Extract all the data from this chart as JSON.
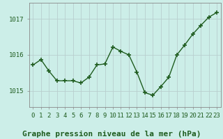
{
  "x": [
    0,
    1,
    2,
    3,
    4,
    5,
    6,
    7,
    8,
    9,
    10,
    11,
    12,
    13,
    14,
    15,
    16,
    17,
    18,
    19,
    20,
    21,
    22,
    23
  ],
  "y": [
    1015.72,
    1015.87,
    1015.55,
    1015.28,
    1015.28,
    1015.28,
    1015.22,
    1015.38,
    1015.72,
    1015.75,
    1016.22,
    1016.1,
    1016.0,
    1015.52,
    1014.95,
    1014.88,
    1015.12,
    1015.38,
    1016.0,
    1016.28,
    1016.58,
    1016.82,
    1017.05,
    1017.18
  ],
  "line_color": "#1f5c1f",
  "marker": "+",
  "marker_size": 5,
  "marker_lw": 1.2,
  "bg_color": "#cceee8",
  "grid_color": "#b8cece",
  "title": "Graphe pression niveau de la mer (hPa)",
  "title_fontsize": 8,
  "title_color": "#1f5c1f",
  "title_bold": true,
  "yticks": [
    1015,
    1016,
    1017
  ],
  "ylim": [
    1014.55,
    1017.45
  ],
  "xlim": [
    -0.5,
    23.5
  ],
  "xtick_labels": [
    "0",
    "1",
    "2",
    "3",
    "4",
    "5",
    "6",
    "7",
    "8",
    "9",
    "10",
    "11",
    "12",
    "13",
    "14",
    "15",
    "16",
    "17",
    "18",
    "19",
    "20",
    "21",
    "22",
    "23"
  ],
  "tick_fontsize": 6.5,
  "tick_color": "#1f5c1f",
  "axis_color": "#888888",
  "linewidth": 1.0
}
